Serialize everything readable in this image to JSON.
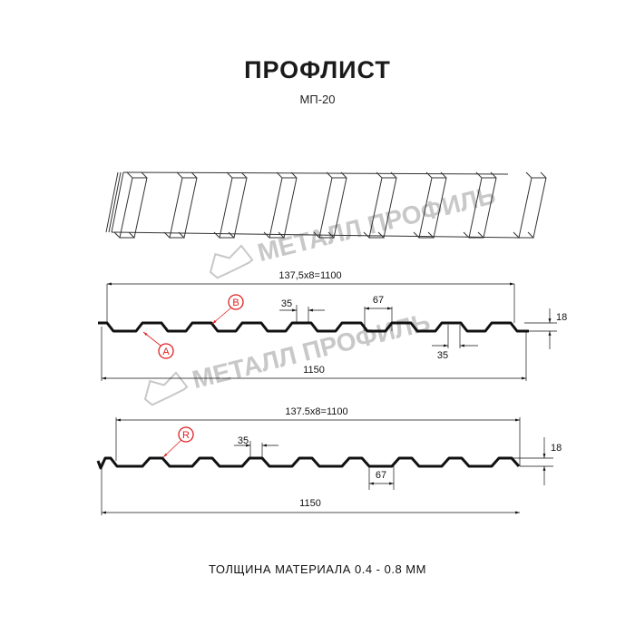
{
  "header": {
    "title": "ПРОФЛИСТ",
    "subtitle": "МП-20"
  },
  "watermark": {
    "text": "МЕТАЛЛ ПРОФИЛЬ"
  },
  "profile_top": {
    "pitch_label": "137,5x8=1100",
    "width_label": "1150",
    "height_label": "18",
    "top_width_label": "35",
    "bottom_width_label": "35",
    "trough_label": "67",
    "marker_a": "A",
    "marker_b": "B"
  },
  "profile_bottom": {
    "pitch_label": "137.5x8=1100",
    "width_label": "1150",
    "height_label": "18",
    "top_width_label": "35",
    "trough_label": "67",
    "marker_r": "R"
  },
  "footer": {
    "thickness": "ТОЛЩИНА МАТЕРИАЛА 0.4 - 0.8 ММ"
  },
  "colors": {
    "profile": "#111111",
    "marker": "#e02020",
    "watermark": "#c8c8c8"
  }
}
